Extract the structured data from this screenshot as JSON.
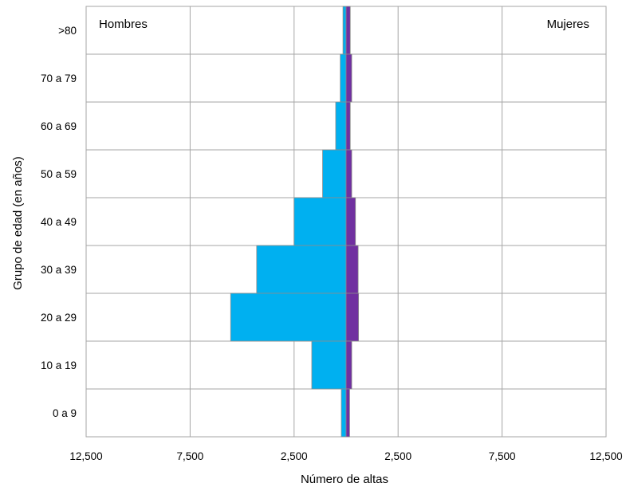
{
  "chart_data": {
    "type": "bar",
    "orientation": "horizontal-pyramid",
    "xlabel": "Número de altas",
    "ylabel": "Grupo de edad (en años)",
    "left_label": "Hombres",
    "right_label": "Mujeres",
    "categories": [
      ">80",
      "70 a 79",
      "60 a 69",
      "50 a 59",
      "40 a 49",
      "30 a 39",
      "20 a 29",
      "10 a 19",
      "0 a 9"
    ],
    "series": [
      {
        "name": "Hombres",
        "color": "#00b0f0",
        "values": [
          150,
          280,
          500,
          1130,
          2500,
          4300,
          5550,
          1650,
          230
        ]
      },
      {
        "name": "Mujeres",
        "color": "#7030a0",
        "values": [
          200,
          270,
          200,
          270,
          450,
          580,
          600,
          270,
          170
        ]
      }
    ],
    "xlim": [
      -12500,
      12500
    ],
    "xticks": [
      {
        "value": -12500,
        "label": "12,500"
      },
      {
        "value": -7500,
        "label": "7,500"
      },
      {
        "value": -2500,
        "label": "2,500"
      },
      {
        "value": 2500,
        "label": "2,500"
      },
      {
        "value": 7500,
        "label": "7,500"
      },
      {
        "value": 12500,
        "label": "12,500"
      }
    ],
    "grid": true,
    "grid_color": "#a6a6a6"
  }
}
